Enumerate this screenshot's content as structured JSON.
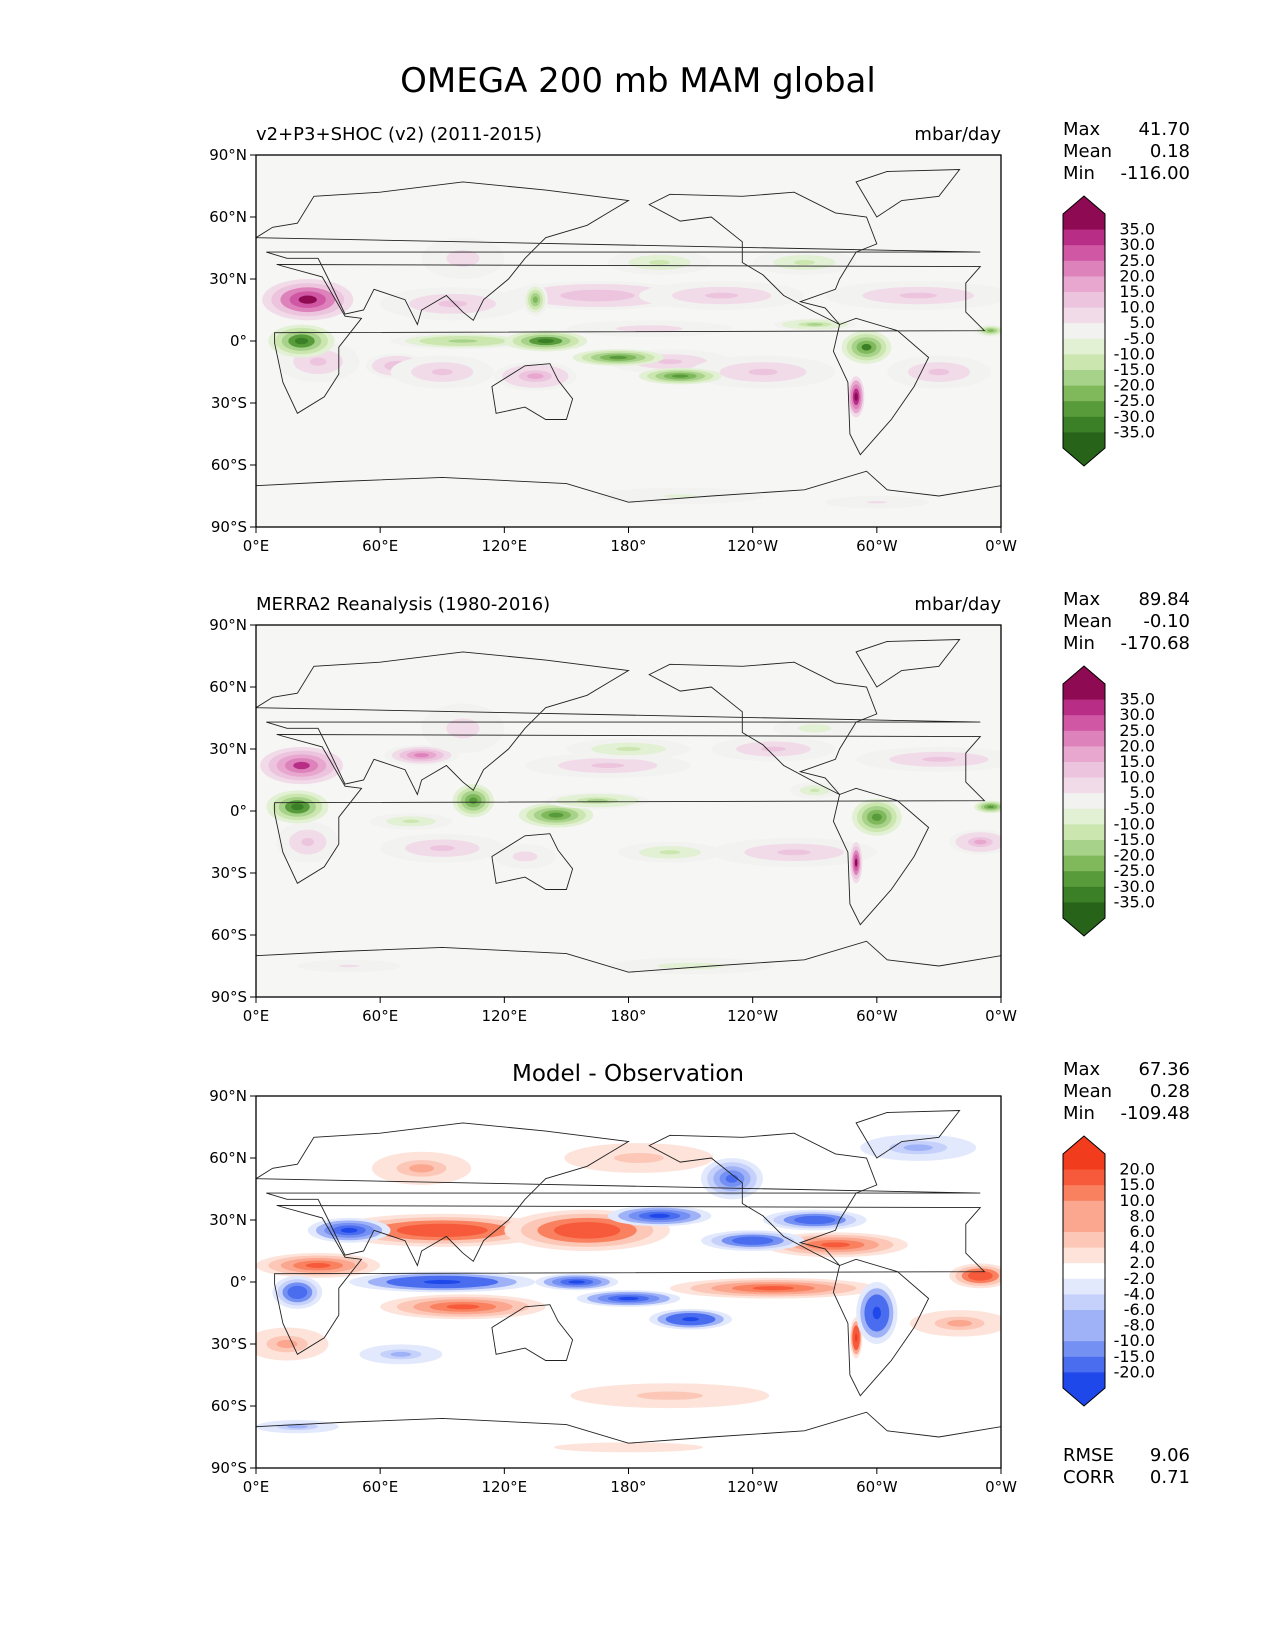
{
  "figure_title": "OMEGA 200 mb MAM global",
  "colors": {
    "ocean_bg": "#f6f6f5",
    "coast": "#222222",
    "pos_ramp": [
      "#f2f2f0",
      "#f1dbe9",
      "#edc4de",
      "#e7a7cf",
      "#dd82bb",
      "#cf57a3",
      "#b82d86",
      "#8e0a52"
    ],
    "neg_ramp": [
      "#f2f2f0",
      "#e2f0d3",
      "#cce6b0",
      "#a7d28a",
      "#80b85c",
      "#589b3b",
      "#3b7f27",
      "#27641a"
    ],
    "diff_pos": [
      "#ffffff",
      "#fde3da",
      "#fcc7b6",
      "#fba68e",
      "#f9815f",
      "#f65a3a",
      "#f23c1e"
    ],
    "diff_neg": [
      "#ffffff",
      "#e3e9fd",
      "#c5d1fb",
      "#9fb2f7",
      "#7590f3",
      "#4a6cef",
      "#1f48ea"
    ]
  },
  "chart_data": [
    {
      "type": "heatmap",
      "id": "test",
      "title_left": "v2+P3+SHOC (v2) (2011-2015)",
      "title_right": "mbar/day",
      "xlabel": "",
      "ylabel": "",
      "xlim": [
        0,
        360
      ],
      "ylim": [
        -90,
        90
      ],
      "x_ticks": [
        "0°E",
        "60°E",
        "120°E",
        "180°",
        "120°W",
        "60°W",
        "0°W"
      ],
      "y_ticks": [
        "90°N",
        "60°N",
        "30°N",
        "0°",
        "30°S",
        "60°S",
        "90°S"
      ],
      "stats": [
        {
          "label": "Max",
          "value": "41.70"
        },
        {
          "label": "Mean",
          "value": "0.18"
        },
        {
          "label": "Min",
          "value": "-116.00"
        }
      ],
      "colorbar_levels": [
        "35.0",
        "30.0",
        "25.0",
        "20.0",
        "15.0",
        "10.0",
        "5.0",
        "-5.0",
        "-10.0",
        "-15.0",
        "-20.0",
        "-25.0",
        "-30.0",
        "-35.0"
      ],
      "features": [
        {
          "lon": 25,
          "lat": 20,
          "rlon": 22,
          "rlat": 10,
          "v": 35
        },
        {
          "lon": 95,
          "lat": 18,
          "rlon": 35,
          "rlat": 8,
          "v": 12
        },
        {
          "lon": 165,
          "lat": 22,
          "rlon": 45,
          "rlat": 7,
          "v": 14
        },
        {
          "lon": 225,
          "lat": 22,
          "rlon": 40,
          "rlat": 7,
          "v": 12
        },
        {
          "lon": 320,
          "lat": 22,
          "rlon": 45,
          "rlat": 7,
          "v": 12
        },
        {
          "lon": 30,
          "lat": -10,
          "rlon": 20,
          "rlat": 10,
          "v": 12
        },
        {
          "lon": 68,
          "lat": -12,
          "rlon": 15,
          "rlat": 6,
          "v": 14
        },
        {
          "lon": 90,
          "lat": -15,
          "rlon": 25,
          "rlat": 8,
          "v": 12
        },
        {
          "lon": 135,
          "lat": -17,
          "rlon": 20,
          "rlat": 7,
          "v": 16
        },
        {
          "lon": 200,
          "lat": -10,
          "rlon": 30,
          "rlat": 6,
          "v": 10
        },
        {
          "lon": 245,
          "lat": -15,
          "rlon": 35,
          "rlat": 8,
          "v": 12
        },
        {
          "lon": 290,
          "lat": -27,
          "rlon": 4,
          "rlat": 10,
          "v": 40
        },
        {
          "lon": 330,
          "lat": -15,
          "rlon": 25,
          "rlat": 8,
          "v": 10
        },
        {
          "lon": 190,
          "lat": 6,
          "rlon": 40,
          "rlat": 4,
          "v": 8
        },
        {
          "lon": 22,
          "lat": 0,
          "rlon": 16,
          "rlat": 8,
          "v": -32
        },
        {
          "lon": 100,
          "lat": 0,
          "rlon": 35,
          "rlat": 4,
          "v": -18
        },
        {
          "lon": 140,
          "lat": 0,
          "rlon": 20,
          "rlat": 5,
          "v": -32
        },
        {
          "lon": 175,
          "lat": -8,
          "rlon": 22,
          "rlat": 4,
          "v": -28
        },
        {
          "lon": 205,
          "lat": -17,
          "rlon": 20,
          "rlat": 4,
          "v": -28
        },
        {
          "lon": 295,
          "lat": -3,
          "rlon": 12,
          "rlat": 8,
          "v": -30
        },
        {
          "lon": 270,
          "lat": 8,
          "rlon": 20,
          "rlat": 3,
          "v": -15
        },
        {
          "lon": 135,
          "lat": 20,
          "rlon": 6,
          "rlat": 8,
          "v": -20
        },
        {
          "lon": 195,
          "lat": 38,
          "rlon": 25,
          "rlat": 6,
          "v": -12
        },
        {
          "lon": 265,
          "lat": 38,
          "rlon": 25,
          "rlat": 6,
          "v": -12
        },
        {
          "lon": 355,
          "lat": 5,
          "rlon": 8,
          "rlat": 3,
          "v": -20
        },
        {
          "lon": 205,
          "lat": -75,
          "rlon": 40,
          "rlat": 4,
          "v": -6
        },
        {
          "lon": 300,
          "lat": -78,
          "rlon": 25,
          "rlat": 3,
          "v": 6
        },
        {
          "lon": 100,
          "lat": 40,
          "rlon": 20,
          "rlat": 10,
          "v": 8
        }
      ]
    },
    {
      "type": "heatmap",
      "id": "ref",
      "title_left": "MERRA2 Reanalysis (1980-2016)",
      "title_right": "mbar/day",
      "xlabel": "",
      "ylabel": "",
      "xlim": [
        0,
        360
      ],
      "ylim": [
        -90,
        90
      ],
      "x_ticks": [
        "0°E",
        "60°E",
        "120°E",
        "180°",
        "120°W",
        "60°W",
        "0°W"
      ],
      "y_ticks": [
        "90°N",
        "60°N",
        "30°N",
        "0°",
        "30°S",
        "60°S",
        "90°S"
      ],
      "stats": [
        {
          "label": "Max",
          "value": "89.84"
        },
        {
          "label": "Mean",
          "value": "-0.10"
        },
        {
          "label": "Min",
          "value": "-170.68"
        }
      ],
      "colorbar_levels": [
        "35.0",
        "30.0",
        "25.0",
        "20.0",
        "15.0",
        "10.0",
        "5.0",
        "-5.0",
        "-10.0",
        "-15.0",
        "-20.0",
        "-25.0",
        "-30.0",
        "-35.0"
      ],
      "features": [
        {
          "lon": 22,
          "lat": 22,
          "rlon": 20,
          "rlat": 9,
          "v": 30
        },
        {
          "lon": 80,
          "lat": 27,
          "rlon": 18,
          "rlat": 5,
          "v": 22
        },
        {
          "lon": 100,
          "lat": 40,
          "rlon": 20,
          "rlat": 12,
          "v": 8
        },
        {
          "lon": 170,
          "lat": 22,
          "rlon": 40,
          "rlat": 6,
          "v": 10
        },
        {
          "lon": 250,
          "lat": 30,
          "rlon": 30,
          "rlat": 6,
          "v": 10
        },
        {
          "lon": 330,
          "lat": 25,
          "rlon": 40,
          "rlat": 6,
          "v": 10
        },
        {
          "lon": 90,
          "lat": -18,
          "rlon": 30,
          "rlat": 7,
          "v": 12
        },
        {
          "lon": 25,
          "lat": -15,
          "rlon": 15,
          "rlat": 10,
          "v": 10
        },
        {
          "lon": 130,
          "lat": -22,
          "rlon": 15,
          "rlat": 6,
          "v": 8
        },
        {
          "lon": 260,
          "lat": -20,
          "rlon": 40,
          "rlat": 7,
          "v": 12
        },
        {
          "lon": 290,
          "lat": -25,
          "rlon": 3,
          "rlat": 10,
          "v": 35
        },
        {
          "lon": 350,
          "lat": -15,
          "rlon": 15,
          "rlat": 6,
          "v": 15
        },
        {
          "lon": 20,
          "lat": 2,
          "rlon": 15,
          "rlat": 8,
          "v": -32
        },
        {
          "lon": 105,
          "lat": 5,
          "rlon": 10,
          "rlat": 8,
          "v": -28
        },
        {
          "lon": 145,
          "lat": -2,
          "rlon": 18,
          "rlat": 6,
          "v": -28
        },
        {
          "lon": 165,
          "lat": 5,
          "rlon": 25,
          "rlat": 4,
          "v": -15
        },
        {
          "lon": 300,
          "lat": -3,
          "rlon": 12,
          "rlat": 9,
          "v": -25
        },
        {
          "lon": 270,
          "lat": 10,
          "rlon": 12,
          "rlat": 4,
          "v": -12
        },
        {
          "lon": 180,
          "lat": 30,
          "rlon": 30,
          "rlat": 5,
          "v": -10
        },
        {
          "lon": 200,
          "lat": -20,
          "rlon": 25,
          "rlat": 5,
          "v": -12
        },
        {
          "lon": 270,
          "lat": 40,
          "rlon": 20,
          "rlat": 5,
          "v": -8
        },
        {
          "lon": 75,
          "lat": -5,
          "rlon": 20,
          "rlat": 4,
          "v": -10
        },
        {
          "lon": 355,
          "lat": 2,
          "rlon": 8,
          "rlat": 3,
          "v": -25
        },
        {
          "lon": 210,
          "lat": -75,
          "rlon": 40,
          "rlat": 4,
          "v": -8
        },
        {
          "lon": 45,
          "lat": -75,
          "rlon": 25,
          "rlat": 3,
          "v": 6
        }
      ]
    },
    {
      "type": "heatmap",
      "id": "diff",
      "title_center": "Model - Observation",
      "xlabel": "",
      "ylabel": "",
      "xlim": [
        0,
        360
      ],
      "ylim": [
        -90,
        90
      ],
      "x_ticks": [
        "0°E",
        "60°E",
        "120°E",
        "180°",
        "120°W",
        "60°W",
        "0°W"
      ],
      "y_ticks": [
        "90°N",
        "60°N",
        "30°N",
        "0°",
        "30°S",
        "60°S",
        "90°S"
      ],
      "stats": [
        {
          "label": "Max",
          "value": "67.36"
        },
        {
          "label": "Mean",
          "value": "0.28"
        },
        {
          "label": "Min",
          "value": "-109.48"
        }
      ],
      "metrics": [
        {
          "label": "RMSE",
          "value": "9.06"
        },
        {
          "label": "CORR",
          "value": "0.71"
        }
      ],
      "colorbar_levels": [
        "20.0",
        "15.0",
        "10.0",
        "8.0",
        "6.0",
        "4.0",
        "2.0",
        "-2.0",
        "-4.0",
        "-6.0",
        "-8.0",
        "-10.0",
        "-15.0",
        "-20.0"
      ],
      "features": [
        {
          "lon": 90,
          "lat": 25,
          "rlon": 55,
          "rlat": 8,
          "v": 14
        },
        {
          "lon": 160,
          "lat": 25,
          "rlon": 40,
          "rlat": 10,
          "v": 14
        },
        {
          "lon": 30,
          "lat": 8,
          "rlon": 30,
          "rlat": 6,
          "v": 12
        },
        {
          "lon": 280,
          "lat": 18,
          "rlon": 35,
          "rlat": 6,
          "v": 10
        },
        {
          "lon": 350,
          "lat": 3,
          "rlon": 15,
          "rlat": 6,
          "v": 14
        },
        {
          "lon": 80,
          "lat": 55,
          "rlon": 30,
          "rlat": 10,
          "v": 6
        },
        {
          "lon": 185,
          "lat": 60,
          "rlon": 60,
          "rlat": 12,
          "v": 4
        },
        {
          "lon": 100,
          "lat": -12,
          "rlon": 40,
          "rlat": 6,
          "v": 12
        },
        {
          "lon": 250,
          "lat": -3,
          "rlon": 50,
          "rlat": 5,
          "v": 10
        },
        {
          "lon": 290,
          "lat": -27,
          "rlon": 3,
          "rlat": 10,
          "v": 18
        },
        {
          "lon": 15,
          "lat": -30,
          "rlon": 25,
          "rlat": 10,
          "v": 6
        },
        {
          "lon": 340,
          "lat": -20,
          "rlon": 30,
          "rlat": 8,
          "v": 6
        },
        {
          "lon": 200,
          "lat": -55,
          "rlon": 80,
          "rlat": 10,
          "v": 4
        },
        {
          "lon": 180,
          "lat": -80,
          "rlon": 90,
          "rlat": 6,
          "v": 3
        },
        {
          "lon": 90,
          "lat": 0,
          "rlon": 45,
          "rlat": 5,
          "v": -18
        },
        {
          "lon": 155,
          "lat": 0,
          "rlon": 20,
          "rlat": 4,
          "v": -16
        },
        {
          "lon": 180,
          "lat": -8,
          "rlon": 25,
          "rlat": 4,
          "v": -16
        },
        {
          "lon": 210,
          "lat": -18,
          "rlon": 20,
          "rlat": 5,
          "v": -18
        },
        {
          "lon": 195,
          "lat": 32,
          "rlon": 25,
          "rlat": 5,
          "v": -16
        },
        {
          "lon": 240,
          "lat": 20,
          "rlon": 25,
          "rlat": 5,
          "v": -14
        },
        {
          "lon": 270,
          "lat": 30,
          "rlon": 25,
          "rlat": 5,
          "v": -14
        },
        {
          "lon": 300,
          "lat": -15,
          "rlon": 10,
          "rlat": 15,
          "v": -18
        },
        {
          "lon": 45,
          "lat": 25,
          "rlon": 20,
          "rlat": 6,
          "v": -16
        },
        {
          "lon": 20,
          "lat": -5,
          "rlon": 12,
          "rlat": 8,
          "v": -14
        },
        {
          "lon": 230,
          "lat": 50,
          "rlon": 15,
          "rlat": 10,
          "v": -10
        },
        {
          "lon": 320,
          "lat": 65,
          "rlon": 35,
          "rlat": 8,
          "v": -6
        },
        {
          "lon": 70,
          "lat": -35,
          "rlon": 25,
          "rlat": 6,
          "v": -6
        },
        {
          "lon": 20,
          "lat": -70,
          "rlon": 25,
          "rlat": 4,
          "v": -6
        }
      ]
    }
  ]
}
